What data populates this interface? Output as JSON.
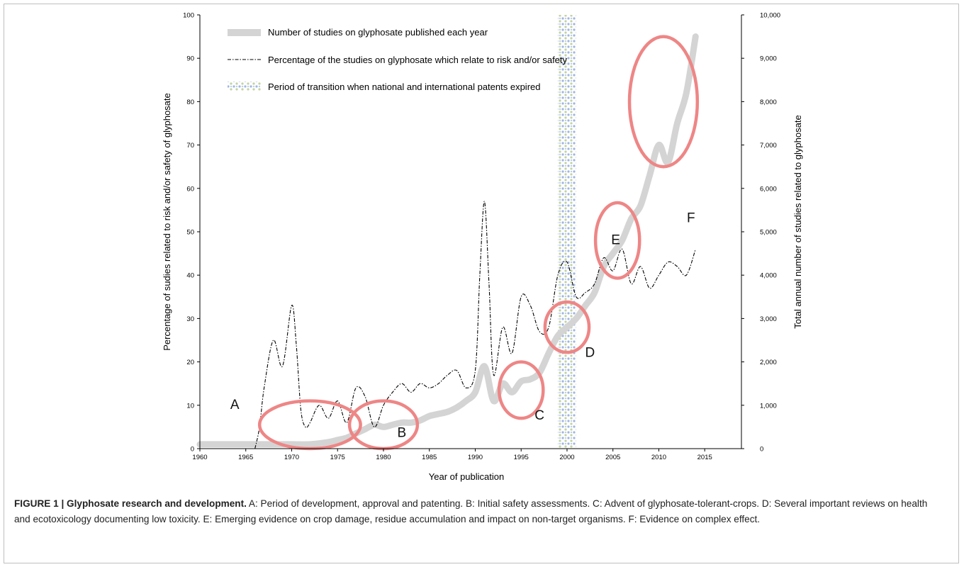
{
  "figure": {
    "caption_label": "FIGURE 1 | Glyphosate research and development.",
    "caption_text": "A: Period of development, approval and patenting. B: Initial safety assessments. C: Advent of glyphosate-tolerant-crops. D: Several important reviews on health and ecotoxicology documenting low toxicity. E: Emerging evidence on crop damage, residue accumulation and impact on non-target organisms. F: Evidence on complex effect."
  },
  "chart_data": {
    "type": "line",
    "xlabel": "Year of publication",
    "ylabel_left": "Percentage of sudies related to risk and/or safety of glyphosate",
    "ylabel_right": "Total annual number of studies related to glyphosate",
    "xlim": [
      1960,
      2019
    ],
    "ylim_left": [
      0,
      100
    ],
    "ylim_right": [
      0,
      10000
    ],
    "x_ticks": [
      1960,
      1965,
      1970,
      1975,
      1980,
      1985,
      1990,
      1995,
      2000,
      2005,
      2010,
      2015
    ],
    "y_ticks_left": [
      "0",
      "10",
      "20",
      "30",
      "40",
      "50",
      "60",
      "70",
      "80",
      "90",
      "100"
    ],
    "y_ticks_right": [
      "0",
      "1,000",
      "2,000",
      "3,000",
      "4,000",
      "5,000",
      "6,000",
      "7,000",
      "8,000",
      "9,000",
      "10,000"
    ],
    "grid": false,
    "legend_position": "top-left",
    "series": [
      {
        "name": "Number of studies on glyphosate published each year",
        "axis": "right",
        "color": "#d4d4d4",
        "x": [
          1960,
          1962,
          1964,
          1966,
          1968,
          1970,
          1972,
          1974,
          1975,
          1976,
          1977,
          1978,
          1979,
          1980,
          1981,
          1982,
          1983,
          1984,
          1985,
          1986,
          1987,
          1988,
          1989,
          1990,
          1991,
          1992,
          1993,
          1994,
          1995,
          1996,
          1997,
          1998,
          1999,
          2000,
          2001,
          2002,
          2003,
          2004,
          2005,
          2006,
          2007,
          2008,
          2009,
          2010,
          2011,
          2012,
          2013,
          2014
        ],
        "y": [
          100,
          100,
          100,
          100,
          100,
          100,
          100,
          150,
          200,
          250,
          350,
          450,
          550,
          500,
          550,
          600,
          600,
          650,
          750,
          800,
          850,
          950,
          1100,
          1300,
          1900,
          1100,
          1500,
          1300,
          1550,
          1600,
          1750,
          2200,
          2600,
          2800,
          3000,
          3300,
          3600,
          4200,
          4500,
          4800,
          5300,
          5600,
          6300,
          7000,
          6600,
          7500,
          8200,
          9500
        ]
      },
      {
        "name": "Percentage of the studies on glyphosate which relate to risk and/or safety",
        "axis": "left",
        "color": "#000000",
        "x": [
          1966,
          1966.5,
          1967,
          1968,
          1969,
          1970,
          1970.5,
          1971,
          1971.5,
          1972,
          1973,
          1974,
          1975,
          1976,
          1977,
          1978,
          1979,
          1980,
          1981,
          1982,
          1983,
          1984,
          1985,
          1986,
          1987,
          1988,
          1989,
          1990,
          1990.5,
          1991,
          1991.5,
          1992,
          1993,
          1994,
          1995,
          1996,
          1997,
          1998,
          1999,
          2000,
          2001,
          2002,
          2003,
          2004,
          2005,
          2006,
          2007,
          2008,
          2009,
          2010,
          2011,
          2012,
          2013,
          2014
        ],
        "y": [
          0,
          5,
          14,
          25,
          19,
          33,
          24,
          9,
          5,
          6,
          10,
          7,
          11,
          6,
          14,
          12,
          5,
          10,
          13,
          15,
          13,
          15,
          14,
          15,
          17,
          18,
          14,
          18,
          40,
          57,
          38,
          17,
          28,
          22,
          35,
          33,
          27,
          28,
          40,
          43,
          35,
          36,
          38,
          44,
          41,
          46,
          38,
          42,
          37,
          40,
          43,
          42,
          40,
          46
        ]
      }
    ],
    "patent_period": {
      "label": "Period of transition when national and international patents expired",
      "start": 1999,
      "end": 2001
    },
    "annotations": [
      {
        "label": "A",
        "cx": 1972,
        "cy": 5.5,
        "rx": 5.5,
        "ry": 5.5
      },
      {
        "label": "B",
        "cx": 1980,
        "cy": 5.5,
        "rx": 3.7,
        "ry": 5.5
      },
      {
        "label": "C",
        "cx": 1995,
        "cy": 13.5,
        "rx": 2.4,
        "ry": 6.5
      },
      {
        "label": "D",
        "cx": 2000,
        "cy": 28,
        "rx": 2.4,
        "ry": 5.8
      },
      {
        "label": "E",
        "cx": 2005.5,
        "cy": 48,
        "rx": 2.4,
        "ry": 8.7
      },
      {
        "label": "F",
        "cx": 2010.5,
        "cy": 80,
        "rx": 3.7,
        "ry": 15
      }
    ]
  },
  "colors": {
    "annotation_ellipse": "#ee8686",
    "studies_band": "#d4d4d4",
    "percentage_line": "#000000",
    "patent_dots": [
      "#9fb5e2",
      "#c3d3a2",
      "#b7cbe0"
    ]
  }
}
